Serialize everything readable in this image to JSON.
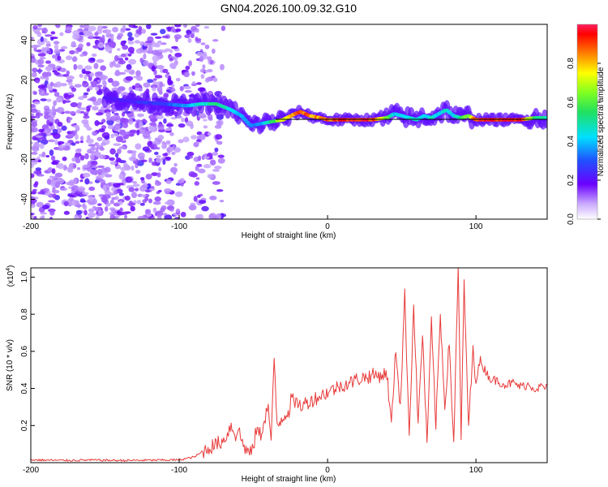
{
  "chart_data": [
    {
      "type": "heatmap",
      "title": "GN04.2026.100.09.32.G10",
      "xlabel": "Height of straight line (km)",
      "ylabel": "Frequency (Hz)",
      "xlim": [
        -200,
        148
      ],
      "ylim": [
        -50,
        48
      ],
      "xticks": [
        -200,
        -100,
        0,
        100
      ],
      "xtick_labels": [
        "-200",
        "-100",
        "0",
        "100"
      ],
      "yticks": [
        -40,
        -20,
        0,
        20,
        40
      ],
      "ytick_labels": [
        "-40",
        "-20",
        "0",
        "20",
        "40"
      ],
      "colorbar": {
        "label": "Normalized spectral amplitude",
        "range": [
          0,
          1
        ],
        "ticks": [
          0.0,
          0.2,
          0.4,
          0.6,
          0.8
        ],
        "tick_labels": [
          "0.0",
          "0.2",
          "0.4",
          "0.6",
          "0.8"
        ]
      },
      "ridge": {
        "x": [
          -150,
          -130,
          -110,
          -95,
          -85,
          -75,
          -65,
          -58,
          -52,
          -45,
          -38,
          -30,
          -22,
          -18,
          -12,
          -5,
          0,
          10,
          20,
          30,
          40,
          45,
          50,
          55,
          60,
          65,
          70,
          75,
          80,
          85,
          90,
          95,
          100,
          110,
          120,
          130,
          140,
          148
        ],
        "y": [
          11,
          9,
          8,
          7,
          8,
          8,
          5,
          2,
          -3,
          -2,
          -1,
          0,
          3,
          4,
          2,
          1,
          0,
          0,
          0,
          0,
          1,
          3,
          2,
          1,
          0,
          2,
          1,
          3,
          5,
          2,
          1,
          2,
          0,
          0,
          0,
          0,
          1,
          1
        ],
        "amplitude": [
          0.22,
          0.26,
          0.3,
          0.4,
          0.5,
          0.55,
          0.48,
          0.4,
          0.35,
          0.4,
          0.55,
          0.8,
          0.9,
          0.95,
          0.9,
          0.9,
          0.95,
          1.0,
          1.0,
          1.0,
          0.7,
          0.45,
          0.45,
          0.5,
          0.5,
          0.45,
          0.5,
          0.45,
          0.5,
          0.45,
          0.6,
          0.7,
          1.0,
          1.0,
          1.0,
          1.0,
          0.6,
          0.5
        ]
      },
      "noise_region_x": [
        -200,
        -80
      ]
    },
    {
      "type": "line",
      "xlabel": "Height of straight line (km)",
      "ylabel": "SNR (10 * v/v)",
      "y_multiplier": "(x10",
      "y_multiplier_exp": "4",
      "y_multiplier_close": ")",
      "xlim": [
        -200,
        148
      ],
      "ylim": [
        0,
        1.05
      ],
      "xticks": [
        -200,
        -100,
        0,
        100
      ],
      "xtick_labels": [
        "-200",
        "-100",
        "0",
        "100"
      ],
      "yticks": [
        0.2,
        0.4,
        0.6,
        0.8,
        1.0
      ],
      "ytick_labels": [
        "0.2",
        "0.4",
        "0.6",
        "0.8",
        "1.0"
      ],
      "color": "#e83a3a",
      "series": [
        {
          "name": "SNR",
          "x": [
            -200,
            -180,
            -160,
            -140,
            -120,
            -100,
            -90,
            -80,
            -75,
            -70,
            -65,
            -62,
            -60,
            -58,
            -55,
            -52,
            -50,
            -48,
            -45,
            -42,
            -40,
            -38,
            -36,
            -34,
            -30,
            -26,
            -24,
            -22,
            -20,
            -18,
            -15,
            -10,
            -5,
            0,
            5,
            10,
            15,
            20,
            25,
            30,
            35,
            40,
            43,
            46,
            49,
            52,
            55,
            58,
            61,
            64,
            67,
            70,
            73,
            76,
            79,
            82,
            85,
            88,
            90,
            92,
            95,
            98,
            100,
            103,
            106,
            110,
            115,
            120,
            125,
            130,
            135,
            140,
            145,
            148
          ],
          "y": [
            0.015,
            0.012,
            0.014,
            0.012,
            0.013,
            0.015,
            0.03,
            0.08,
            0.1,
            0.12,
            0.2,
            0.15,
            0.18,
            0.12,
            0.07,
            0.05,
            0.08,
            0.18,
            0.15,
            0.25,
            0.3,
            0.12,
            0.55,
            0.2,
            0.25,
            0.28,
            0.36,
            0.3,
            0.33,
            0.3,
            0.32,
            0.34,
            0.36,
            0.38,
            0.4,
            0.42,
            0.43,
            0.45,
            0.46,
            0.47,
            0.47,
            0.48,
            0.2,
            0.62,
            0.3,
            0.9,
            0.15,
            0.85,
            0.2,
            0.7,
            0.1,
            0.75,
            0.2,
            0.8,
            0.3,
            0.65,
            0.1,
            1.04,
            0.15,
            0.95,
            0.2,
            0.6,
            0.45,
            0.55,
            0.5,
            0.45,
            0.44,
            0.42,
            0.43,
            0.41,
            0.42,
            0.4,
            0.41,
            0.4
          ]
        }
      ]
    }
  ]
}
